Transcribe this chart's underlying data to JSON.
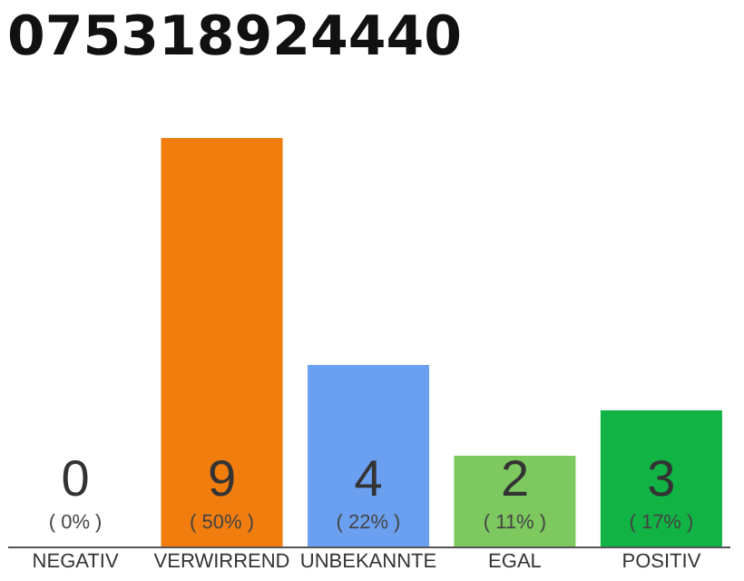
{
  "chart_data": {
    "type": "bar",
    "title": "075318924440",
    "categories": [
      "NEGATIV",
      "VERWIRREND",
      "UNBEKANNTE",
      "EGAL",
      "POSITIV"
    ],
    "values": [
      0,
      9,
      4,
      2,
      3
    ],
    "colors": [
      "#cccccc",
      "#f07d0e",
      "#6b9ff0",
      "#7ec95f",
      "#12b345"
    ],
    "data_labels": true,
    "annotations": [
      "( 0% )",
      "( 50% )",
      "( 22% )",
      "( 11% )",
      "( 17% )"
    ],
    "ylim": [
      0,
      9
    ],
    "tick_labels": "x",
    "grid": false
  }
}
